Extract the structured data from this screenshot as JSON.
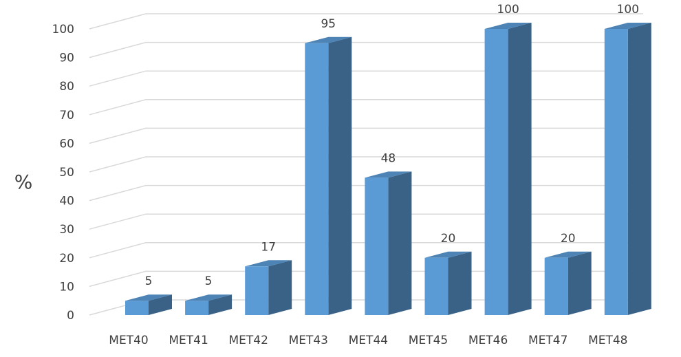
{
  "chart_data": {
    "type": "bar",
    "title": "",
    "xlabel": "",
    "ylabel": "%",
    "ylim": [
      0,
      100
    ],
    "y_ticks": [
      "0",
      "10",
      "20",
      "30",
      "40",
      "50",
      "60",
      "70",
      "80",
      "90",
      "100"
    ],
    "grid": true,
    "style": "3d-column",
    "categories": [
      "MET40",
      "MET41",
      "MET42",
      "MET43",
      "MET44",
      "MET45",
      "MET46",
      "MET47",
      "MET48"
    ],
    "values": [
      5,
      5,
      17,
      95,
      48,
      20,
      100,
      20,
      100
    ],
    "data_labels": [
      "5",
      "5",
      "17",
      "95",
      "48",
      "20",
      "100",
      "20",
      "100"
    ],
    "colors": {
      "front": "#5b9bd5",
      "side": "#3a6287",
      "top": "#4d83b5",
      "grid": "#d9d9d9",
      "text": "#404040"
    }
  }
}
